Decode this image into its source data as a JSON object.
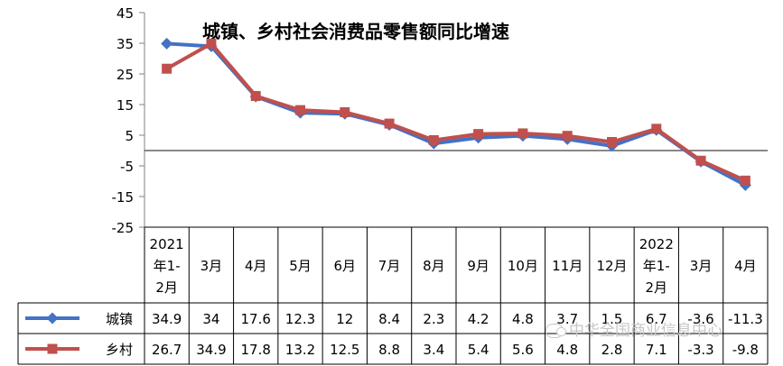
{
  "chart_data": {
    "type": "line",
    "title": "城镇、乡村社会消费品零售额同比增速",
    "categories": [
      [
        "2021",
        "年1-",
        "2月"
      ],
      [
        "3月"
      ],
      [
        "4月"
      ],
      [
        "5月"
      ],
      [
        "6月"
      ],
      [
        "7月"
      ],
      [
        "8月"
      ],
      [
        "9月"
      ],
      [
        "10月"
      ],
      [
        "11月"
      ],
      [
        "12月"
      ],
      [
        "2022",
        "年1-",
        "2月"
      ],
      [
        "3月"
      ],
      [
        "4月"
      ]
    ],
    "series": [
      {
        "name": "城镇",
        "color": "#4472c4",
        "marker": "diamond",
        "values": [
          34.9,
          34,
          17.6,
          12.3,
          12,
          8.4,
          2.3,
          4.2,
          4.8,
          3.7,
          1.5,
          6.7,
          -3.6,
          -11.3
        ],
        "labels": [
          "34.9",
          "34",
          "17.6",
          "12.3",
          "12",
          "8.4",
          "2.3",
          "4.2",
          "4.8",
          "3.7",
          "1.5",
          "6.7",
          "-3.6",
          "-11.3"
        ]
      },
      {
        "name": "乡村",
        "color": "#c0504d",
        "marker": "square",
        "values": [
          26.7,
          34.9,
          17.8,
          13.2,
          12.5,
          8.8,
          3.4,
          5.4,
          5.6,
          4.8,
          2.8,
          7.1,
          -3.3,
          -9.8
        ],
        "labels": [
          "26.7",
          "34.9",
          "17.8",
          "13.2",
          "12.5",
          "8.8",
          "3.4",
          "5.4",
          "5.6",
          "4.8",
          "2.8",
          "7.1",
          "-3.3",
          "-9.8"
        ]
      }
    ],
    "ylim": [
      -25,
      45
    ],
    "yticks": [
      "45",
      "35",
      "25",
      "15",
      "5",
      "-5",
      "-15",
      "-25"
    ],
    "ytick_values": [
      45,
      35,
      25,
      15,
      5,
      -5,
      -15,
      -25
    ],
    "zero_line": 0,
    "grid": false,
    "legend": "data-table"
  },
  "watermark": {
    "text": "中华全国商业信息中心"
  }
}
